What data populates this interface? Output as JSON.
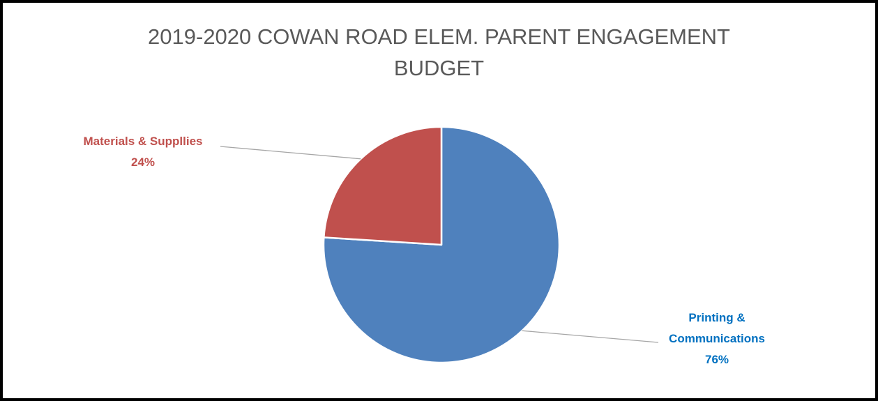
{
  "chart_data": {
    "type": "pie",
    "title": "2019-2020 COWAN ROAD ELEM. PARENT ENGAGEMENT BUDGET",
    "title_lines": [
      "2019-2020 COWAN ROAD ELEM. PARENT ENGAGEMENT",
      "BUDGET"
    ],
    "start_angle_deg": 0,
    "direction": "clockwise",
    "slices": [
      {
        "category": "Printing & Communications",
        "label_lines": [
          "Printing &",
          "Communications"
        ],
        "value": 76,
        "percent_label": "76%",
        "color": "#4F81BD",
        "label_color": "#0070C0"
      },
      {
        "category": "Materials & Suppllies",
        "label_lines": [
          "Materials & Suppllies"
        ],
        "value": 24,
        "percent_label": "24%",
        "color": "#C0504D",
        "label_color": "#C0504D"
      }
    ],
    "legend": "none",
    "leader_line_color": "#A6A6A6"
  }
}
